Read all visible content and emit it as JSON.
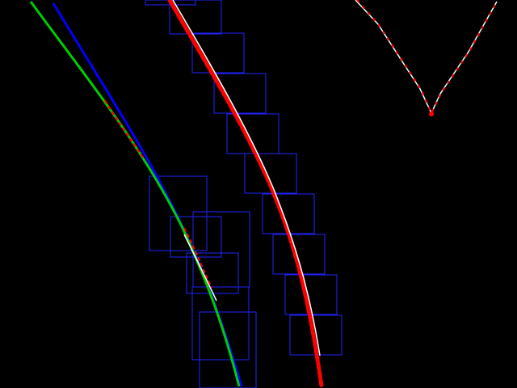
{
  "view": {
    "background_color": "#000000"
  },
  "colors": {
    "window_box": "#1f24ff",
    "left_fit": "#00cc00",
    "left_fit_secondary": "#0000ff",
    "right_fit": "#ff0000",
    "lane_center": "#ffffff",
    "lane_points": "#ff0000"
  }
}
